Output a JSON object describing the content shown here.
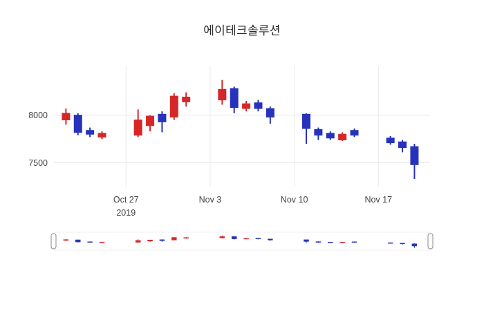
{
  "chart_data": {
    "type": "candlestick",
    "title": "에이테크솔루션",
    "increasing_color": "#d62728",
    "decreasing_color": "#2632bc",
    "grid_color": "#e9e9e9",
    "tick_color": "#444444",
    "xlim": [
      -1,
      30.3
    ],
    "ylim": [
      7250,
      8520
    ],
    "y_ticks": [
      {
        "value": 8000,
        "label": "8000"
      },
      {
        "value": 7500,
        "label": "7500"
      }
    ],
    "x_ticks": [
      {
        "offset": 5,
        "label": "Oct 27",
        "sublabel": "2019"
      },
      {
        "offset": 12,
        "label": "Nov 3",
        "sublabel": ""
      },
      {
        "offset": 19,
        "label": "Nov 10",
        "sublabel": ""
      },
      {
        "offset": 26,
        "label": "Nov 17",
        "sublabel": ""
      }
    ],
    "rangeslider": true,
    "candles": [
      {
        "date": "2019-10-22",
        "offset": 0,
        "open": 7950,
        "high": 8070,
        "low": 7900,
        "close": 8020
      },
      {
        "date": "2019-10-23",
        "offset": 1,
        "open": 8000,
        "high": 8020,
        "low": 7790,
        "close": 7820
      },
      {
        "date": "2019-10-24",
        "offset": 2,
        "open": 7840,
        "high": 7870,
        "low": 7770,
        "close": 7800
      },
      {
        "date": "2019-10-25",
        "offset": 3,
        "open": 7770,
        "high": 7830,
        "low": 7750,
        "close": 7810
      },
      {
        "date": "2019-10-28",
        "offset": 6,
        "open": 7790,
        "high": 8060,
        "low": 7770,
        "close": 7950
      },
      {
        "date": "2019-10-29",
        "offset": 7,
        "open": 7890,
        "high": 8000,
        "low": 7830,
        "close": 7990
      },
      {
        "date": "2019-10-30",
        "offset": 8,
        "open": 8010,
        "high": 8040,
        "low": 7820,
        "close": 7930
      },
      {
        "date": "2019-10-31",
        "offset": 9,
        "open": 7980,
        "high": 8230,
        "low": 7950,
        "close": 8200
      },
      {
        "date": "2019-11-01",
        "offset": 10,
        "open": 8140,
        "high": 8240,
        "low": 8090,
        "close": 8190
      },
      {
        "date": "2019-11-04",
        "offset": 13,
        "open": 8160,
        "high": 8370,
        "low": 8110,
        "close": 8270
      },
      {
        "date": "2019-11-05",
        "offset": 14,
        "open": 8280,
        "high": 8300,
        "low": 8020,
        "close": 8080
      },
      {
        "date": "2019-11-06",
        "offset": 15,
        "open": 8070,
        "high": 8150,
        "low": 8040,
        "close": 8120
      },
      {
        "date": "2019-11-07",
        "offset": 16,
        "open": 8130,
        "high": 8160,
        "low": 8040,
        "close": 8070
      },
      {
        "date": "2019-11-08",
        "offset": 17,
        "open": 8070,
        "high": 8090,
        "low": 7910,
        "close": 7980
      },
      {
        "date": "2019-11-11",
        "offset": 20,
        "open": 8010,
        "high": 8020,
        "low": 7700,
        "close": 7860
      },
      {
        "date": "2019-11-12",
        "offset": 21,
        "open": 7850,
        "high": 7870,
        "low": 7740,
        "close": 7790
      },
      {
        "date": "2019-11-13",
        "offset": 22,
        "open": 7810,
        "high": 7830,
        "low": 7740,
        "close": 7760
      },
      {
        "date": "2019-11-14",
        "offset": 23,
        "open": 7740,
        "high": 7820,
        "low": 7730,
        "close": 7800
      },
      {
        "date": "2019-11-15",
        "offset": 24,
        "open": 7840,
        "high": 7860,
        "low": 7770,
        "close": 7790
      },
      {
        "date": "2019-11-18",
        "offset": 27,
        "open": 7760,
        "high": 7780,
        "low": 7690,
        "close": 7710
      },
      {
        "date": "2019-11-19",
        "offset": 28,
        "open": 7720,
        "high": 7740,
        "low": 7610,
        "close": 7660
      },
      {
        "date": "2019-11-20",
        "offset": 29,
        "open": 7670,
        "high": 7700,
        "low": 7330,
        "close": 7480
      }
    ]
  }
}
